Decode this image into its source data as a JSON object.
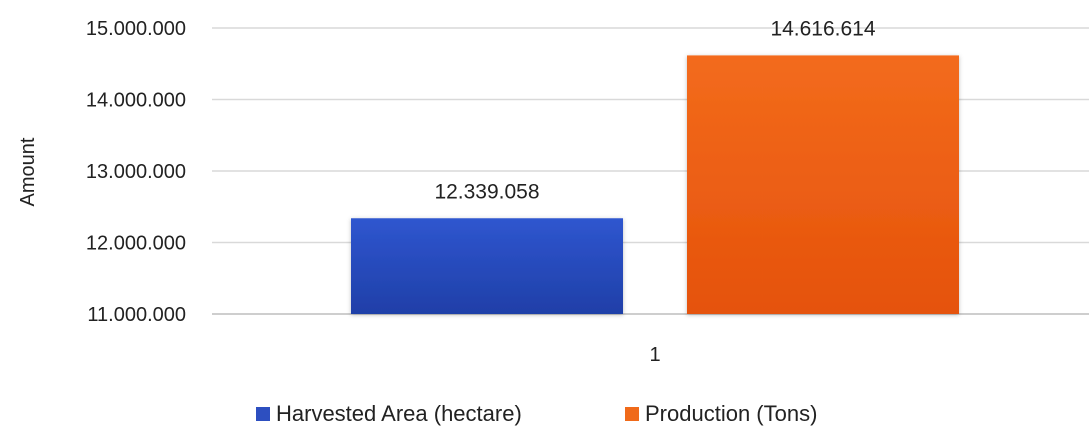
{
  "chart_data": {
    "type": "bar",
    "categories": [
      "1"
    ],
    "series": [
      {
        "name": "Harvested Area (hectare)",
        "values": [
          12339058
        ],
        "label": "12.339.058",
        "color": "#2d4fc0"
      },
      {
        "name": "Production (Tons)",
        "values": [
          14616614
        ],
        "label": "14.616.614",
        "color": "#f06a1a"
      }
    ],
    "title": "",
    "xlabel": "",
    "ylabel": "Amount",
    "ylim": [
      11000000,
      15000000
    ],
    "yticks": [
      15000000,
      14000000,
      13000000,
      12000000,
      11000000
    ],
    "ytick_labels": [
      "15.000.000",
      "14.000.000",
      "13.000.000",
      "12.000.000",
      "11.000.000"
    ],
    "grid": true,
    "legend_position": "bottom"
  }
}
